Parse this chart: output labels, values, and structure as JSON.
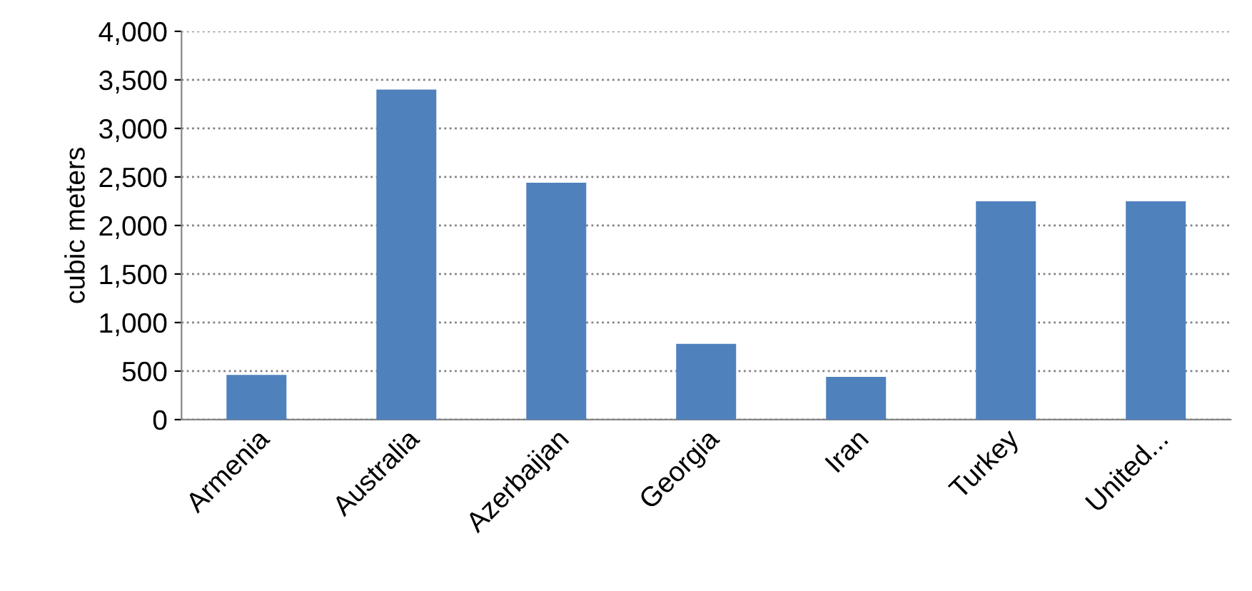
{
  "chart_data": {
    "type": "bar",
    "ylabel": "cubic meters",
    "categories": [
      "Armenia",
      "Australia",
      "Azerbaijan",
      "Georgia",
      "Iran",
      "Turkey",
      "United..."
    ],
    "values": [
      460,
      3400,
      2440,
      780,
      440,
      2250,
      2250
    ],
    "color": "#4f81bd",
    "ylim": [
      0,
      4000
    ],
    "yticks": [
      {
        "value": 0,
        "label": "0"
      },
      {
        "value": 500,
        "label": "500"
      },
      {
        "value": 1000,
        "label": "1,000"
      },
      {
        "value": 1500,
        "label": "1,500"
      },
      {
        "value": 2000,
        "label": "2,000"
      },
      {
        "value": 2500,
        "label": "2,500"
      },
      {
        "value": 3000,
        "label": "3,000"
      },
      {
        "value": 3500,
        "label": "3,500"
      },
      {
        "value": 4000,
        "label": "4,000"
      }
    ],
    "grid": "y",
    "line_style": "dotted",
    "legend": false
  }
}
